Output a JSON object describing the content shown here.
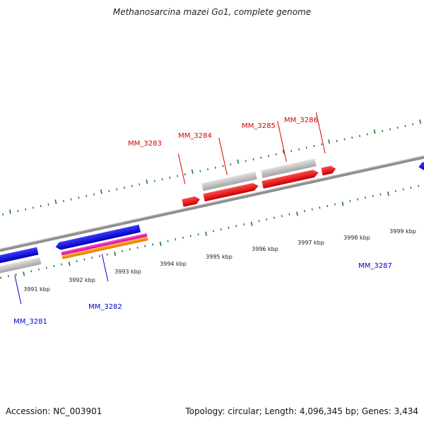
{
  "title": "Methanosarcina mazei Go1, complete genome",
  "footer": {
    "accession": "Accession: NC_003901",
    "summary": "Topology: circular; Length: 4,096,345 bp; Genes: 3,434"
  },
  "colors": {
    "forward_label": "#dd0000",
    "reverse_label": "#0000cc",
    "tick": "#1f7a1f",
    "backbone": "#8a8a8a"
  },
  "ticks": {
    "labels": [
      "3991 kbp",
      "3992 kbp",
      "3993 kbp",
      "3994 kbp",
      "3995 kbp",
      "3996 kbp",
      "3997 kbp",
      "3998 kbp",
      "3999 kbp"
    ]
  },
  "labels": {
    "forward": [
      "MM_3283",
      "MM_3284",
      "MM_3285",
      "MM_3286"
    ],
    "reverse": [
      "MM_3281",
      "MM_3282",
      "MM_3287"
    ]
  }
}
